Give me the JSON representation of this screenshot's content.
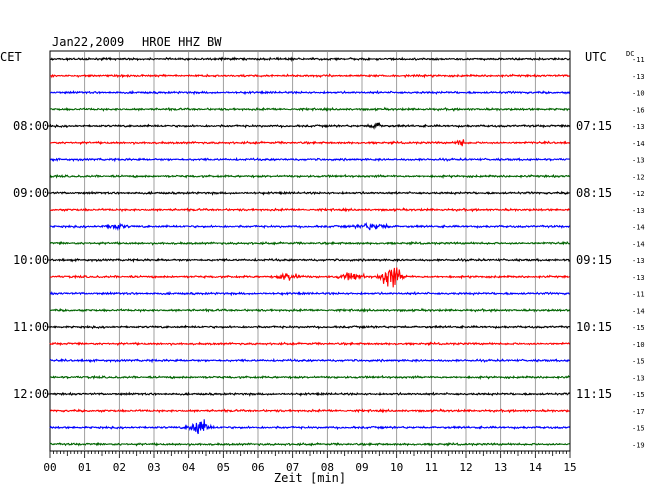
{
  "header": {
    "date": "Jan22,2009",
    "station": "HROE HHZ BW",
    "left_timezone": "CET",
    "right_timezone": "UTC",
    "dc_label": "DC"
  },
  "chart_data": {
    "type": "line",
    "title": "Jan22,2009   HROE HHZ BW",
    "xlabel": "Zeit [min]",
    "xlim": [
      0,
      15
    ],
    "x_ticks": [
      "00",
      "01",
      "02",
      "03",
      "04",
      "05",
      "06",
      "07",
      "08",
      "09",
      "10",
      "11",
      "12",
      "13",
      "14",
      "15"
    ],
    "grid": true,
    "trace_colors": [
      "#000000",
      "#ff0000",
      "#0000ff",
      "#006400"
    ],
    "left_hour_labels": [
      "08:00",
      "09:00",
      "10:00",
      "11:00",
      "12:00"
    ],
    "right_hour_labels": [
      "07:15",
      "08:15",
      "09:15",
      "10:15",
      "11:15"
    ],
    "hour_label_rows": [
      4,
      8,
      12,
      16,
      20
    ],
    "dc_offsets": [
      "-11",
      "-13",
      "-10",
      "-16",
      "-13",
      "-14",
      "-13",
      "-12",
      "-12",
      "-13",
      "-14",
      "-14",
      "-13",
      "-13",
      "-11",
      "-14",
      "-15",
      "-10",
      "-15",
      "-13",
      "-15",
      "-17",
      "-15",
      "-19"
    ],
    "events": [
      {
        "row": 4,
        "minute": 9.4,
        "amplitude": 5,
        "width": 0.15
      },
      {
        "row": 5,
        "minute": 11.85,
        "amplitude": 7,
        "width": 0.1
      },
      {
        "row": 10,
        "minute": 1.9,
        "amplitude": 4,
        "width": 0.25
      },
      {
        "row": 10,
        "minute": 9.3,
        "amplitude": 4,
        "width": 0.4
      },
      {
        "row": 13,
        "minute": 6.9,
        "amplitude": 6,
        "width": 0.25
      },
      {
        "row": 13,
        "minute": 8.7,
        "amplitude": 5,
        "width": 0.3
      },
      {
        "row": 13,
        "minute": 9.85,
        "amplitude": 18,
        "width": 0.25
      },
      {
        "row": 22,
        "minute": 4.3,
        "amplitude": 12,
        "width": 0.25
      }
    ]
  }
}
